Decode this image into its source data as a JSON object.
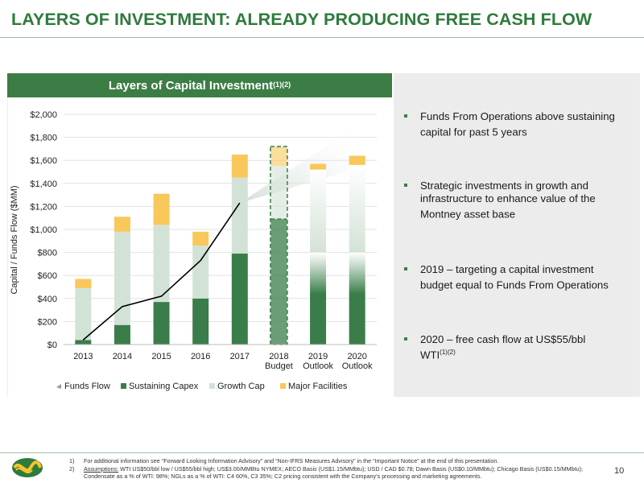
{
  "page": {
    "title": "LAYERS OF INVESTMENT:  ALREADY PRODUCING FREE CASH FLOW",
    "page_number": "10"
  },
  "panel": {
    "heading": "Layers of Capital Investment",
    "heading_superscript": "(1)(2)"
  },
  "bullets": [
    {
      "text": "Funds From Operations above sustaining capital for past 5 years",
      "sup": ""
    },
    {
      "text": "Strategic investments in growth and infrastructure to enhance value of the Montney asset base",
      "sup": ""
    },
    {
      "text": "2019 – targeting a capital investment budget equal to Funds From Operations",
      "sup": ""
    },
    {
      "text": "2020 – free cash flow at US$55/bbl WTI",
      "sup": "(1)(2)"
    }
  ],
  "footnotes": [
    {
      "num": "1)",
      "label": "",
      "text": "For additional information see “Forward Looking Information Advisory” and “Non-IFRS Measures Advisory” in the “Important Notice” at the end of this presentation."
    },
    {
      "num": "2)",
      "label": "Assumptions:",
      "text": " WTI US$50/bbl low / US$55/bbl high; US$3.00/MMBtu NYMEX; AECO Basis (US$1.15/MMbtu); USD / CAD $0.78; Dawn Basis (US$0.10/MMbtu); Chicago Basis (US$0.15/MMbtu); Condensate as a % of WTI: 98%; NGLs as a % of WTI: C4 60%, C3 35%; C2 pricing consistent with the Company’s processing and marketing agreements."
    }
  ],
  "colors": {
    "brand_green": "#2e7b3c",
    "sustaining": "#3a7d4a",
    "growth": "#d3e2d6",
    "major": "#f9c85a",
    "funds_flow_line": "#000000"
  },
  "chart_data": {
    "type": "bar",
    "stacked": true,
    "categories": [
      "2013",
      "2014",
      "2015",
      "2016",
      "2017",
      "2018 Budget",
      "2019 Outlook",
      "2020 Outlook"
    ],
    "category_lines": [
      [
        "2013"
      ],
      [
        "2014"
      ],
      [
        "2015"
      ],
      [
        "2016"
      ],
      [
        "2017"
      ],
      [
        "2018",
        "Budget"
      ],
      [
        "2019",
        "Outlook"
      ],
      [
        "2020",
        "Outlook"
      ]
    ],
    "series": [
      {
        "name": "Sustaining Capex",
        "values": [
          40,
          170,
          370,
          400,
          790,
          1090,
          800,
          800
        ]
      },
      {
        "name": "Growth Cap",
        "values": [
          450,
          810,
          670,
          460,
          660,
          460,
          720,
          760
        ]
      },
      {
        "name": "Major Facilities",
        "values": [
          80,
          130,
          270,
          120,
          200,
          170,
          50,
          80
        ]
      }
    ],
    "line_series": {
      "name": "Funds Flow",
      "x": [
        "2013",
        "2014",
        "2015",
        "2016",
        "2017"
      ],
      "values": [
        40,
        330,
        420,
        730,
        1230
      ]
    },
    "ylabel": "Capital / Funds Flow ($MM)",
    "xlabel": "",
    "ylim": [
      0,
      2000
    ],
    "yticks": [
      0,
      200,
      400,
      600,
      800,
      1000,
      1200,
      1400,
      1600,
      1800,
      2000
    ],
    "ytick_labels": [
      "$0",
      "$200",
      "$400",
      "$600",
      "$800",
      "$1,000",
      "$1,200",
      "$1,400",
      "$1,600",
      "$1,800",
      "$2,000"
    ],
    "grid": true,
    "legend_position": "bottom",
    "legend": [
      "Funds Flow",
      "Sustaining Capex",
      "Growth Cap",
      "Major Facilities"
    ]
  }
}
